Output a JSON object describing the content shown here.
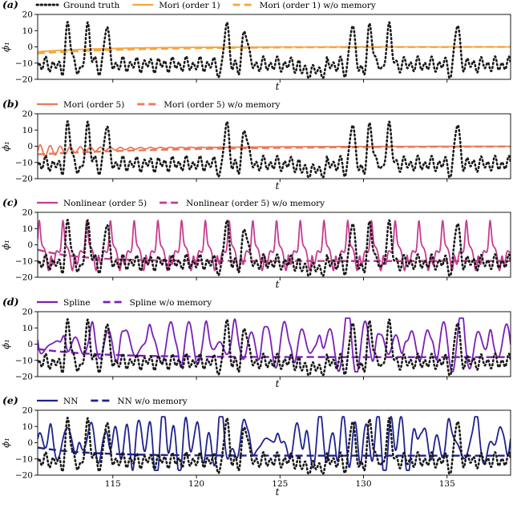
{
  "figure": {
    "x_tick_values": [
      115,
      120,
      125,
      130,
      135
    ],
    "x_tick_labels": [
      "115",
      "120",
      "125",
      "130",
      "135"
    ],
    "y_tick_values": [
      -20,
      -10,
      0,
      10,
      20
    ],
    "y_tick_labels": [
      "−20",
      "−10",
      "0",
      "10",
      "20"
    ],
    "colors": {
      "ground_truth": "#1a1a1a",
      "mori1": "#f5a53b",
      "mori5": "#ec7858",
      "nonlinear": "#c53d90",
      "spline": "#7a1fb8",
      "nn": "#1f2290"
    }
  },
  "chart_data": [
    {
      "type": "line",
      "panel_label": "(a)",
      "xlabel": "t",
      "ylabel": "ϕ₁",
      "xlim": [
        110.5,
        138.8
      ],
      "ylim": [
        -20,
        20
      ],
      "legend": {
        "placement": "top",
        "entries": [
          "Ground truth",
          "Mori (order 1)",
          "Mori (order 1) w/o memory"
        ]
      },
      "series": [
        {
          "name": "Ground truth",
          "style": "dotted",
          "color_key": "ground_truth",
          "kind": "ground_truth"
        },
        {
          "name": "Mori (order 1)",
          "style": "solid",
          "color_key": "mori1",
          "kind": "decay",
          "start": -3,
          "end": 0,
          "tau": 4.0,
          "osc_amp": 0.0
        },
        {
          "name": "Mori (order 1) w/o memory",
          "style": "dashed",
          "color_key": "mori1",
          "kind": "decay",
          "start": -4,
          "end": 0,
          "tau": 6.0,
          "osc_amp": 0.0
        }
      ]
    },
    {
      "type": "line",
      "panel_label": "(b)",
      "xlabel": "t",
      "ylabel": "ϕ₁",
      "xlim": [
        110.5,
        138.8
      ],
      "ylim": [
        -20,
        20
      ],
      "legend": {
        "placement": "top",
        "entries": [
          "Mori (order 5)",
          "Mori (order 5) w/o memory"
        ]
      },
      "series": [
        {
          "name": "Ground truth",
          "style": "dotted",
          "color_key": "ground_truth",
          "kind": "ground_truth"
        },
        {
          "name": "Mori (order 5)",
          "style": "solid",
          "color_key": "mori5",
          "kind": "decay",
          "start": -3,
          "end": 0,
          "tau": 7.0,
          "osc_amp": 4.0
        },
        {
          "name": "Mori (order 5) w/o memory",
          "style": "dashed",
          "color_key": "mori5",
          "kind": "decay",
          "start": -5,
          "end": 0,
          "tau": 9.0,
          "osc_amp": 0.0
        }
      ]
    },
    {
      "type": "line",
      "panel_label": "(c)",
      "xlabel": "t",
      "ylabel": "ϕ₁",
      "xlim": [
        110.5,
        138.8
      ],
      "ylim": [
        -20,
        20
      ],
      "legend": {
        "placement": "top",
        "entries": [
          "Nonlinear (order 5)",
          "Nonlinear (order 5) w/o memory"
        ]
      },
      "series": [
        {
          "name": "Ground truth",
          "style": "dotted",
          "color_key": "ground_truth",
          "kind": "ground_truth"
        },
        {
          "name": "Nonlinear (order 5)",
          "style": "solid",
          "color_key": "nonlinear",
          "kind": "periodic",
          "period": 1.42,
          "phase": 111.3,
          "peak": 15,
          "trough": -14
        },
        {
          "name": "Nonlinear (order 5) w/o memory",
          "style": "dashed",
          "color_key": "nonlinear",
          "kind": "decay",
          "start": -3,
          "end": -10,
          "tau": 2.5,
          "osc_amp": 0.0
        }
      ]
    },
    {
      "type": "line",
      "panel_label": "(d)",
      "xlabel": "t",
      "ylabel": "ϕ₁",
      "xlim": [
        110.5,
        138.8
      ],
      "ylim": [
        -20,
        20
      ],
      "legend": {
        "placement": "top",
        "entries": [
          "Spline",
          "Spline w/o memory"
        ]
      },
      "series": [
        {
          "name": "Ground truth",
          "style": "dotted",
          "color_key": "ground_truth",
          "kind": "ground_truth"
        },
        {
          "name": "Spline",
          "style": "solid",
          "color_key": "spline",
          "kind": "chaotic",
          "seed": 2
        },
        {
          "name": "Spline w/o memory",
          "style": "dashed",
          "color_key": "spline",
          "kind": "decay",
          "start": -3,
          "end": -8,
          "tau": 3.5,
          "osc_amp": 0.0
        }
      ]
    },
    {
      "type": "line",
      "panel_label": "(e)",
      "xlabel": "t",
      "ylabel": "ϕ₁",
      "xlim": [
        110.5,
        138.8
      ],
      "ylim": [
        -20,
        20
      ],
      "legend": {
        "placement": "top",
        "entries": [
          "NN",
          "NN w/o memory"
        ]
      },
      "series": [
        {
          "name": "Ground truth",
          "style": "dotted",
          "color_key": "ground_truth",
          "kind": "ground_truth"
        },
        {
          "name": "NN",
          "style": "solid",
          "color_key": "nn",
          "kind": "chaotic",
          "seed": 5
        },
        {
          "name": "NN w/o memory",
          "style": "dashed",
          "color_key": "nn",
          "kind": "decay",
          "start": -3,
          "end": -8,
          "tau": 3.0,
          "osc_amp": 0.0
        }
      ]
    }
  ]
}
